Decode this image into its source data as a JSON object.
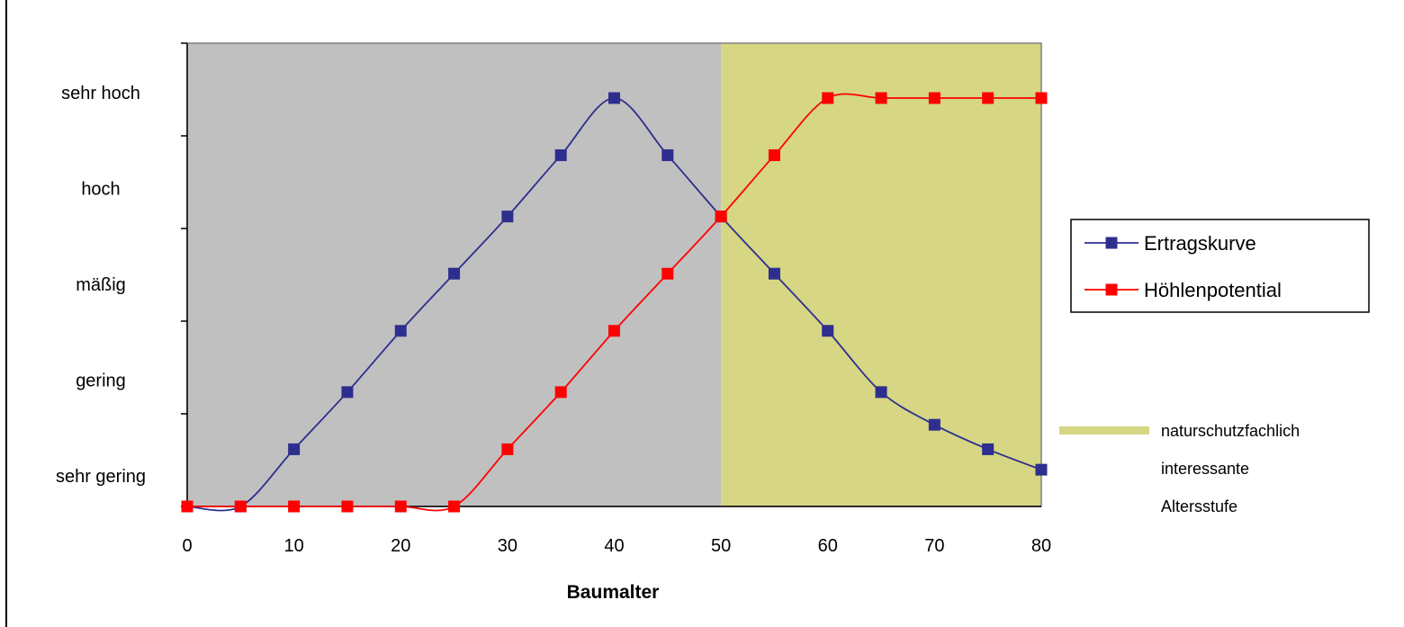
{
  "chart_data": {
    "type": "line",
    "xlabel": "Baumalter",
    "ylabel": "",
    "x_ticks": [
      0,
      10,
      20,
      30,
      40,
      50,
      60,
      70,
      80
    ],
    "xlim": [
      0,
      80
    ],
    "y_categories": [
      "sehr gering",
      "gering",
      "mäßig",
      "hoch",
      "sehr hoch"
    ],
    "ylim": [
      0,
      1
    ],
    "grid": false,
    "legend_position": "right",
    "background_regions": [
      {
        "x_range": [
          0,
          50
        ],
        "color": "#c0c0c0"
      },
      {
        "x_range": [
          50,
          80
        ],
        "color": "#d6d684",
        "label": [
          "naturschutzfachlich",
          "interessante",
          "Altersstufe"
        ]
      }
    ],
    "series": [
      {
        "name": "Ertragskurve",
        "color": "#2e2e8f",
        "x": [
          0,
          5,
          10,
          15,
          20,
          25,
          30,
          35,
          40,
          45,
          50,
          55,
          60,
          65,
          70,
          75,
          80
        ],
        "values": [
          0.0,
          0.0,
          0.14,
          0.28,
          0.43,
          0.57,
          0.71,
          0.86,
          1.0,
          0.86,
          0.71,
          0.57,
          0.43,
          0.28,
          0.2,
          0.14,
          0.09
        ]
      },
      {
        "name": "Höhlenpotential",
        "color": "#ff0000",
        "x": [
          0,
          5,
          10,
          15,
          20,
          25,
          30,
          35,
          40,
          45,
          50,
          55,
          60,
          65,
          70,
          75,
          80
        ],
        "values": [
          0.0,
          0.0,
          0.0,
          0.0,
          0.0,
          0.0,
          0.14,
          0.28,
          0.43,
          0.57,
          0.71,
          0.86,
          1.0,
          1.0,
          1.0,
          1.0,
          1.0
        ]
      }
    ]
  }
}
